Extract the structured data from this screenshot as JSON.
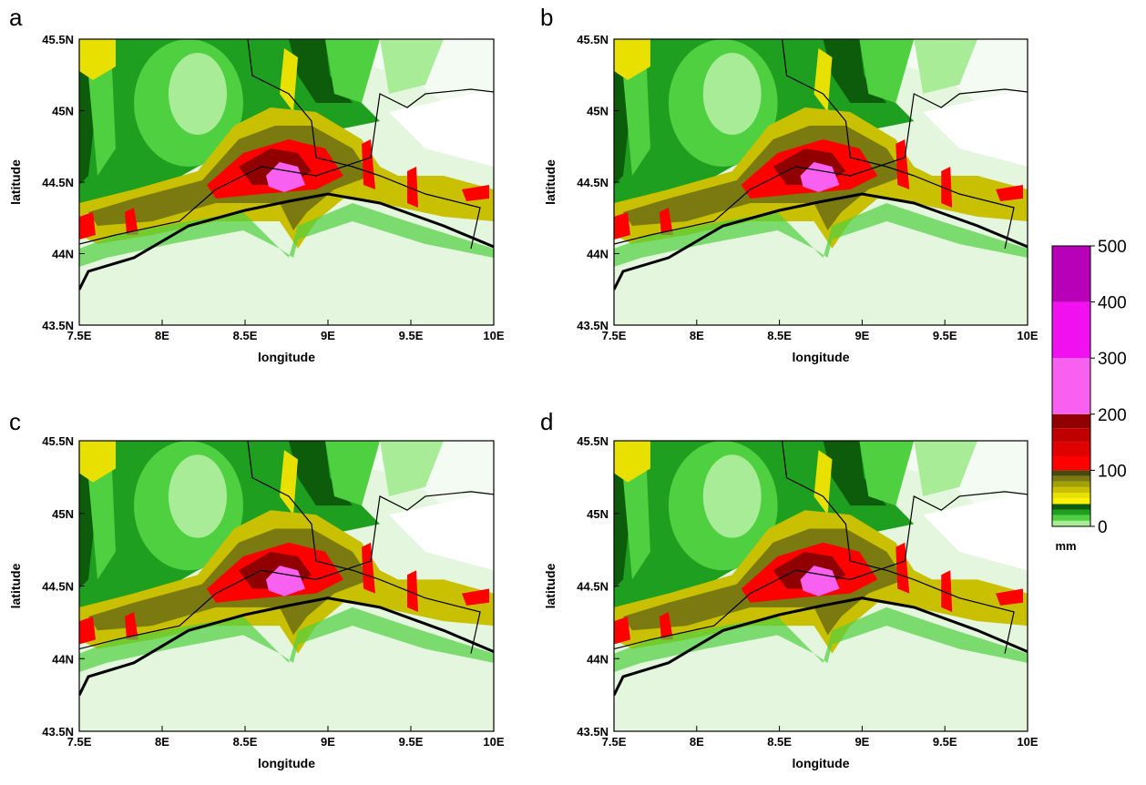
{
  "panels": [
    {
      "label": "a",
      "x_label": "longitude",
      "y_label": "latitude",
      "xlim": [
        7.5,
        10
      ],
      "ylim": [
        43.5,
        45.5
      ],
      "xticks": [
        {
          "value": 7.5,
          "label": "7.5E"
        },
        {
          "value": 8,
          "label": "8E"
        },
        {
          "value": 8.5,
          "label": "8.5E"
        },
        {
          "value": 9,
          "label": "9E"
        },
        {
          "value": 9.5,
          "label": "9.5E"
        },
        {
          "value": 10,
          "label": "10E"
        }
      ],
      "yticks": [
        {
          "value": 43.5,
          "label": "43.5N"
        },
        {
          "value": 44,
          "label": "44N"
        },
        {
          "value": 44.5,
          "label": "44.5N"
        },
        {
          "value": 45,
          "label": "45N"
        },
        {
          "value": 45.5,
          "label": "45.5N"
        }
      ]
    },
    {
      "label": "b",
      "x_label": "longitude",
      "y_label": "latitude",
      "xlim": [
        7.5,
        10
      ],
      "ylim": [
        43.5,
        45.5
      ],
      "xticks": [
        {
          "value": 7.5,
          "label": "7.5E"
        },
        {
          "value": 8,
          "label": "8E"
        },
        {
          "value": 8.5,
          "label": "8.5E"
        },
        {
          "value": 9,
          "label": "9E"
        },
        {
          "value": 9.5,
          "label": "9.5E"
        },
        {
          "value": 10,
          "label": "10E"
        }
      ],
      "yticks": [
        {
          "value": 43.5,
          "label": "43.5N"
        },
        {
          "value": 44,
          "label": "44N"
        },
        {
          "value": 44.5,
          "label": "44.5N"
        },
        {
          "value": 45,
          "label": "45N"
        },
        {
          "value": 45.5,
          "label": "45.5N"
        }
      ]
    },
    {
      "label": "c",
      "x_label": "longitude",
      "y_label": "latitude",
      "xlim": [
        7.5,
        10
      ],
      "ylim": [
        43.5,
        45.5
      ],
      "xticks": [
        {
          "value": 7.5,
          "label": "7.5E"
        },
        {
          "value": 8,
          "label": "8E"
        },
        {
          "value": 8.5,
          "label": "8.5E"
        },
        {
          "value": 9,
          "label": "9E"
        },
        {
          "value": 9.5,
          "label": "9.5E"
        },
        {
          "value": 10,
          "label": "10E"
        }
      ],
      "yticks": [
        {
          "value": 43.5,
          "label": "43.5N"
        },
        {
          "value": 44,
          "label": "44N"
        },
        {
          "value": 44.5,
          "label": "44.5N"
        },
        {
          "value": 45,
          "label": "45N"
        },
        {
          "value": 45.5,
          "label": "45.5N"
        }
      ]
    },
    {
      "label": "d",
      "x_label": "longitude",
      "y_label": "latitude",
      "xlim": [
        7.5,
        10
      ],
      "ylim": [
        43.5,
        45.5
      ],
      "xticks": [
        {
          "value": 7.5,
          "label": "7.5E"
        },
        {
          "value": 8,
          "label": "8E"
        },
        {
          "value": 8.5,
          "label": "8.5E"
        },
        {
          "value": 9,
          "label": "9E"
        },
        {
          "value": 9.5,
          "label": "9.5E"
        },
        {
          "value": 10,
          "label": "10E"
        }
      ],
      "yticks": [
        {
          "value": 43.5,
          "label": "43.5N"
        },
        {
          "value": 44,
          "label": "44N"
        },
        {
          "value": 44.5,
          "label": "44.5N"
        },
        {
          "value": 45,
          "label": "45N"
        },
        {
          "value": 45.5,
          "label": "45.5N"
        }
      ]
    }
  ],
  "colorbar": {
    "lim": [
      0,
      500
    ],
    "ticks": [
      0,
      100,
      200,
      300,
      400,
      500
    ],
    "unit": "mm",
    "segments": [
      {
        "from": 0,
        "to": 10,
        "color": "#a8ec98"
      },
      {
        "from": 10,
        "to": 20,
        "color": "#4fd040"
      },
      {
        "from": 20,
        "to": 30,
        "color": "#1f9f1f"
      },
      {
        "from": 30,
        "to": 40,
        "color": "#0c5c0c"
      },
      {
        "from": 40,
        "to": 50,
        "color": "#fff200"
      },
      {
        "from": 50,
        "to": 60,
        "color": "#e8e000"
      },
      {
        "from": 60,
        "to": 70,
        "color": "#c8c000"
      },
      {
        "from": 70,
        "to": 80,
        "color": "#a0a000"
      },
      {
        "from": 80,
        "to": 90,
        "color": "#7a7a10"
      },
      {
        "from": 90,
        "to": 100,
        "color": "#4a4a10"
      },
      {
        "from": 100,
        "to": 125,
        "color": "#ff0000"
      },
      {
        "from": 125,
        "to": 150,
        "color": "#e00000"
      },
      {
        "from": 150,
        "to": 175,
        "color": "#c00000"
      },
      {
        "from": 175,
        "to": 200,
        "color": "#900000"
      },
      {
        "from": 200,
        "to": 300,
        "color": "#f860f0"
      },
      {
        "from": 300,
        "to": 400,
        "color": "#f010f0"
      },
      {
        "from": 400,
        "to": 500,
        "color": "#b800b8"
      }
    ]
  }
}
